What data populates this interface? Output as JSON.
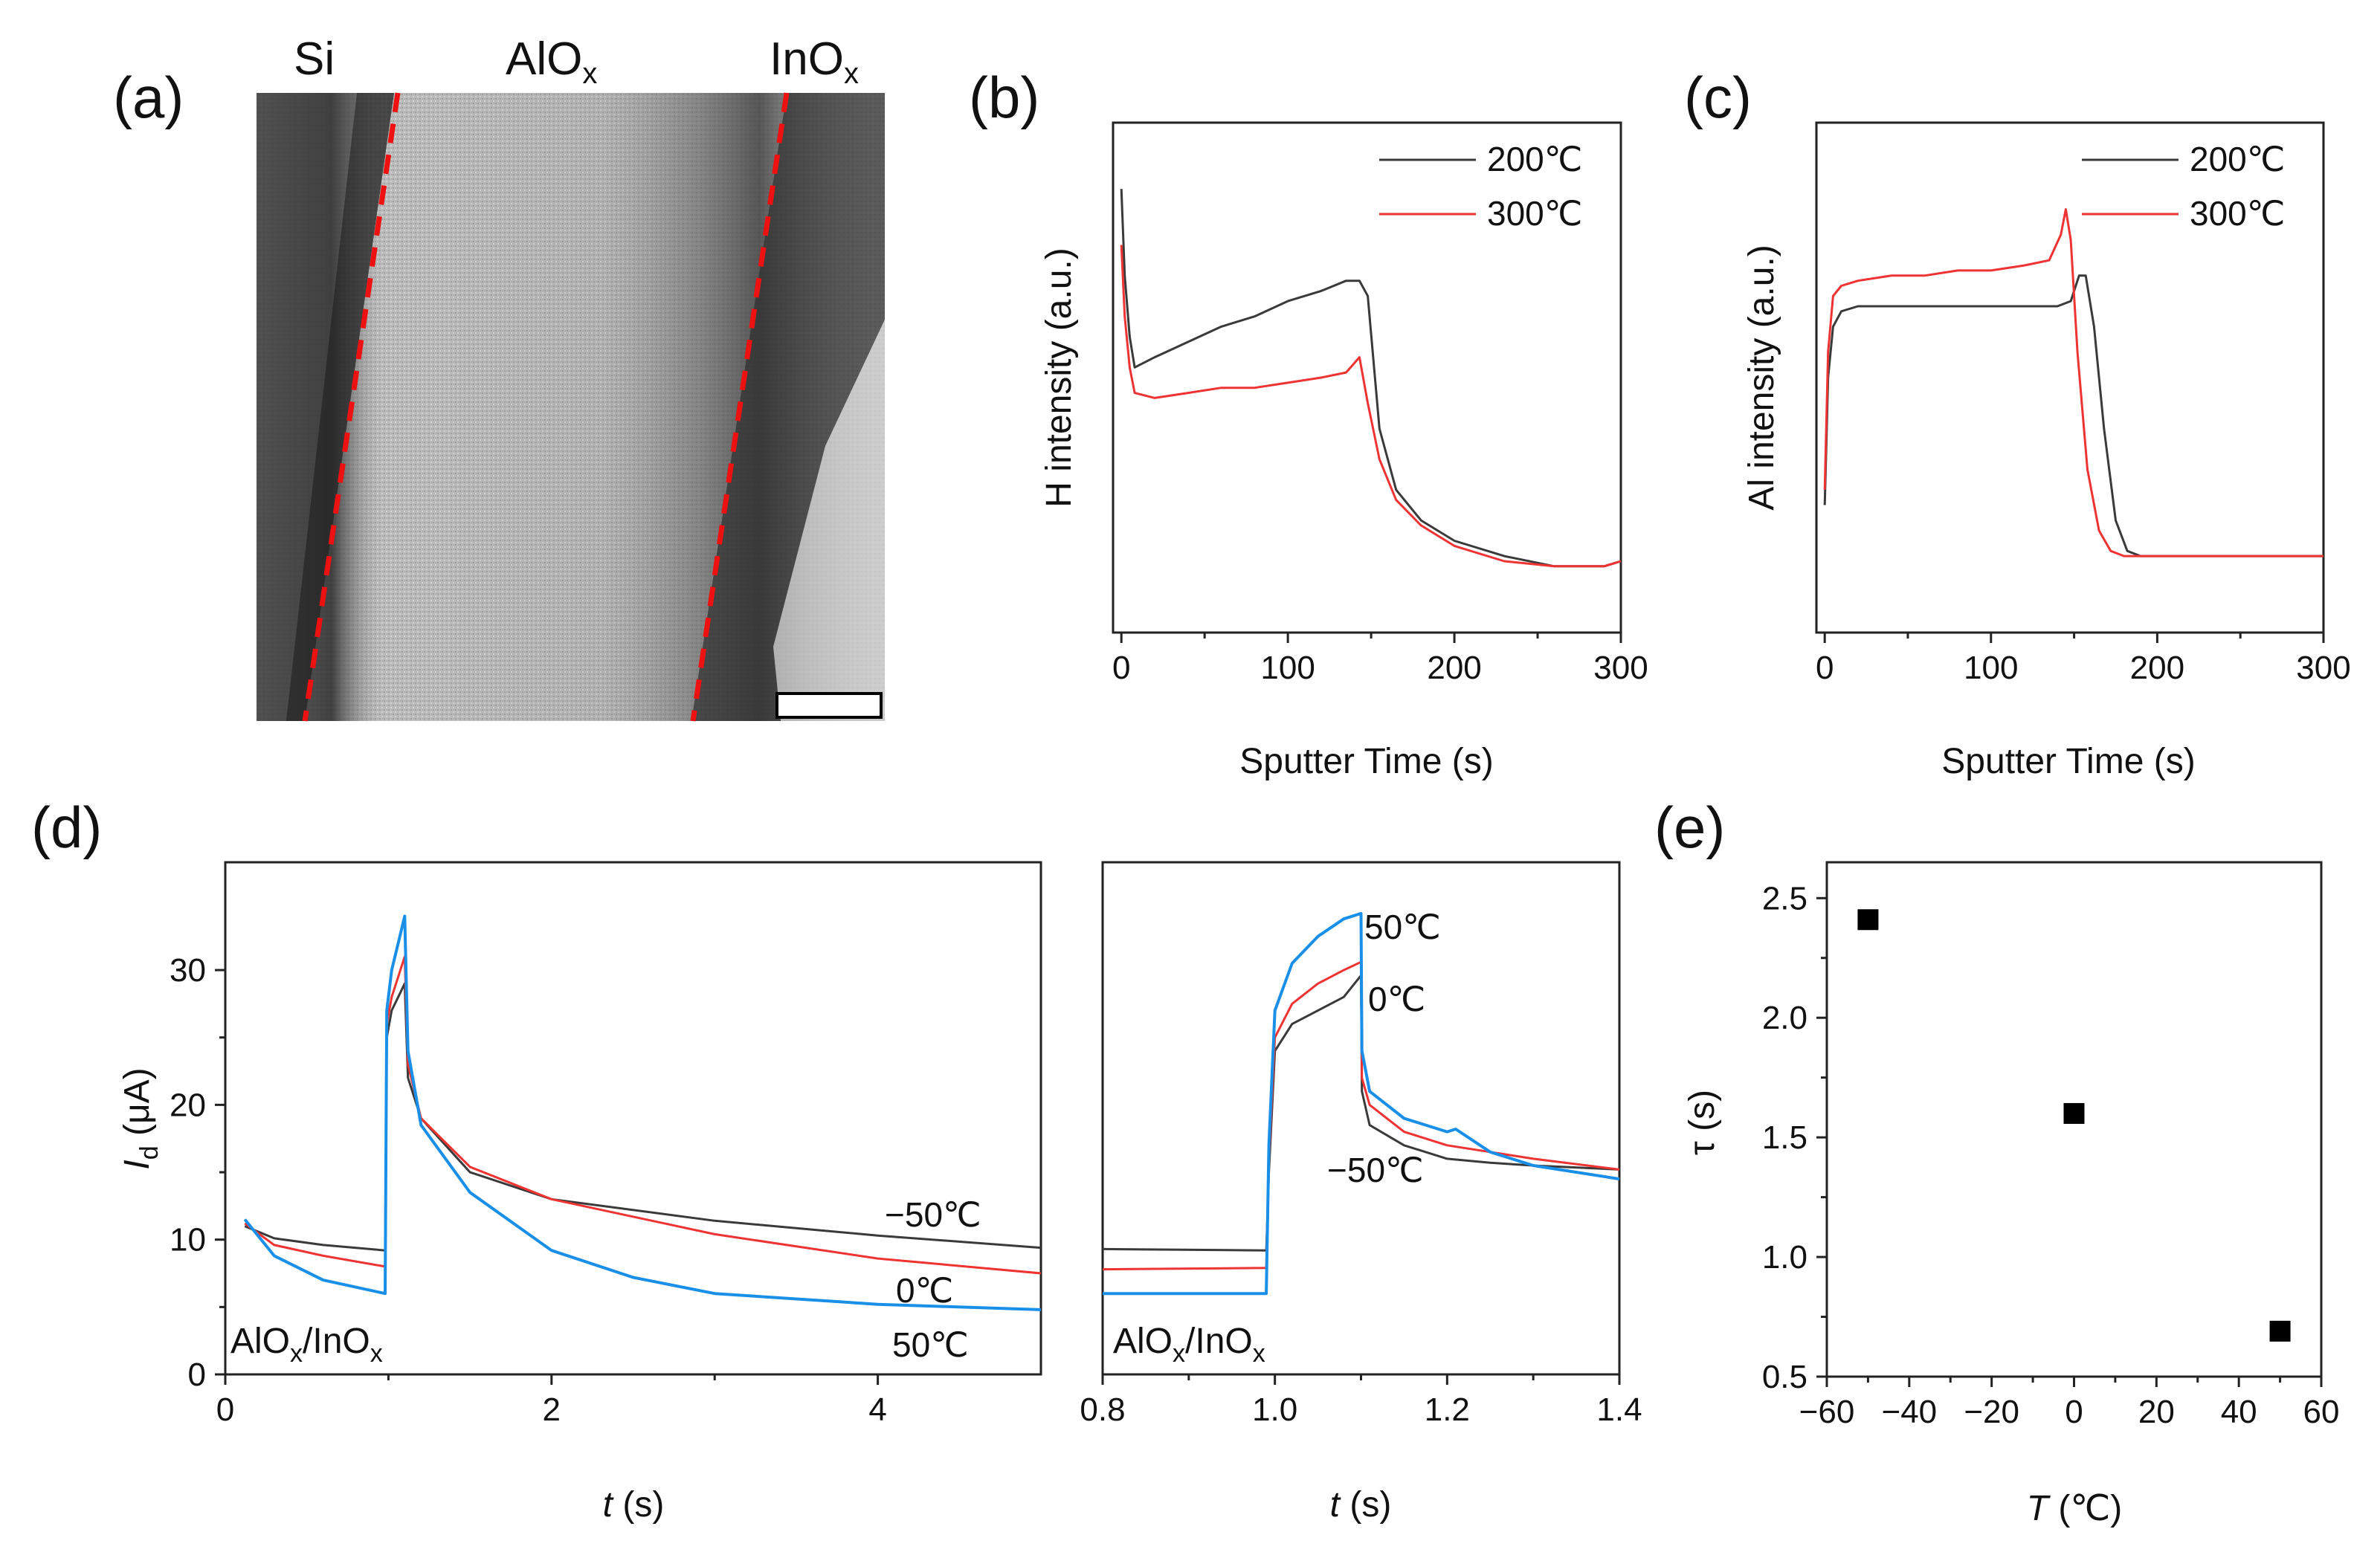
{
  "figure": {
    "panel_labels": [
      "(a)",
      "(b)",
      "(c)",
      "(d)",
      "(e)"
    ],
    "colors": {
      "c200": "#3a3a3a",
      "c300": "#ee3333",
      "cm50": "#3a3a3a",
      "c0": "#ee3333",
      "c50": "#1a8fe8",
      "marker": "#000000",
      "interface": "#ee1111"
    }
  },
  "tem": {
    "labels": [
      "Si",
      "AlO",
      "x",
      "InO",
      "x"
    ],
    "scale_bar_icon": "scale-bar"
  },
  "chart_data": [
    {
      "id": "b",
      "type": "line",
      "xlabel": "Sputter Time (s)",
      "ylabel": "H intensity (a.u.)",
      "xlim": [
        -5,
        300
      ],
      "ylim": [
        0,
        100
      ],
      "xticks": [
        "0",
        "100",
        "200",
        "300"
      ],
      "xtick_values": [
        0,
        100,
        200,
        300
      ],
      "series": [
        {
          "name": "200℃",
          "color": "#3a3a3a",
          "x": [
            0,
            2,
            5,
            8,
            20,
            40,
            60,
            80,
            100,
            120,
            135,
            143,
            148,
            155,
            165,
            180,
            200,
            230,
            260,
            290,
            300
          ],
          "y": [
            87,
            70,
            58,
            52,
            54,
            57,
            60,
            62,
            65,
            67,
            69,
            69,
            66,
            40,
            28,
            22,
            18,
            15,
            13,
            13,
            14
          ]
        },
        {
          "name": "300℃",
          "color": "#ee3333",
          "x": [
            0,
            2,
            5,
            8,
            20,
            40,
            60,
            80,
            100,
            120,
            135,
            143,
            148,
            155,
            165,
            180,
            200,
            230,
            260,
            290,
            300
          ],
          "y": [
            76,
            62,
            52,
            47,
            46,
            47,
            48,
            48,
            49,
            50,
            51,
            54,
            45,
            34,
            26,
            21,
            17,
            14,
            13,
            13,
            14
          ]
        }
      ]
    },
    {
      "id": "c",
      "type": "line",
      "xlabel": "Sputter Time (s)",
      "ylabel": "Al intensity (a.u.)",
      "xlim": [
        -5,
        300
      ],
      "ylim": [
        0,
        100
      ],
      "xticks": [
        "0",
        "100",
        "200",
        "300"
      ],
      "xtick_values": [
        0,
        100,
        200,
        300
      ],
      "series": [
        {
          "name": "200℃",
          "color": "#3a3a3a",
          "x": [
            0,
            2,
            5,
            10,
            20,
            40,
            60,
            80,
            100,
            120,
            140,
            148,
            153,
            157,
            162,
            168,
            175,
            182,
            190,
            220,
            260,
            300
          ],
          "y": [
            25,
            50,
            60,
            63,
            64,
            64,
            64,
            64,
            64,
            64,
            64,
            65,
            70,
            70,
            60,
            40,
            22,
            16,
            15,
            15,
            15,
            15
          ]
        },
        {
          "name": "300℃",
          "color": "#ee3333",
          "x": [
            0,
            2,
            5,
            10,
            20,
            40,
            60,
            80,
            100,
            120,
            135,
            142,
            145,
            148,
            152,
            158,
            165,
            172,
            180,
            220,
            260,
            300
          ],
          "y": [
            28,
            55,
            66,
            68,
            69,
            70,
            70,
            71,
            71,
            72,
            73,
            78,
            83,
            77,
            55,
            32,
            20,
            16,
            15,
            15,
            15,
            15
          ]
        }
      ]
    },
    {
      "id": "d-left",
      "type": "line",
      "xlabel_italic": "t",
      "xlabel_rest": " (s)",
      "ylabel_italic": "I",
      "ylabel_sub": "d",
      "ylabel_rest": " (μA)",
      "xlim": [
        0,
        5
      ],
      "ylim": [
        0,
        38
      ],
      "xticks": [
        "0",
        "2",
        "4"
      ],
      "xtick_values": [
        0,
        2,
        4
      ],
      "yticks": [
        "0",
        "10",
        "20",
        "30"
      ],
      "ytick_values": [
        0,
        10,
        20,
        30
      ],
      "sample": "AlO",
      "sample_sub1": "x",
      "sample_mid": "/InO",
      "sample_sub2": "x",
      "series": [
        {
          "name": "−50℃",
          "color": "#3a3a3a",
          "x": [
            0.12,
            0.3,
            0.6,
            0.98,
            0.99,
            1.02,
            1.06,
            1.1,
            1.12,
            1.2,
            1.5,
            2.0,
            3.0,
            4.0,
            5.0
          ],
          "y": [
            11.0,
            10.1,
            9.6,
            9.2,
            25.0,
            27.0,
            28.0,
            29.0,
            22.0,
            19.0,
            15.0,
            13.0,
            11.4,
            10.3,
            9.4
          ]
        },
        {
          "name": "0℃",
          "color": "#ee3333",
          "x": [
            0.12,
            0.3,
            0.6,
            0.98,
            0.99,
            1.02,
            1.06,
            1.1,
            1.12,
            1.2,
            1.5,
            2.0,
            3.0,
            4.0,
            5.0
          ],
          "y": [
            11.2,
            9.6,
            8.8,
            8.0,
            26.0,
            28.0,
            29.5,
            31.0,
            23.0,
            19.0,
            15.4,
            13.0,
            10.4,
            8.6,
            7.5
          ]
        },
        {
          "name": "50℃",
          "color": "#1a8fe8",
          "x": [
            0.12,
            0.3,
            0.6,
            0.98,
            0.99,
            1.02,
            1.06,
            1.1,
            1.12,
            1.2,
            1.5,
            2.0,
            2.5,
            3.0,
            4.0,
            5.0
          ],
          "y": [
            11.5,
            8.8,
            7.0,
            6.0,
            27.0,
            30.0,
            32.0,
            34.0,
            24.0,
            18.5,
            13.5,
            9.2,
            7.2,
            6.0,
            5.2,
            4.8
          ]
        }
      ],
      "annotations": [
        "−50℃",
        "0℃",
        "50℃"
      ]
    },
    {
      "id": "d-right",
      "type": "line",
      "xlabel_italic": "t",
      "xlabel_rest": " (s)",
      "xlim": [
        0.8,
        1.4
      ],
      "ylim": [
        0,
        38
      ],
      "xticks": [
        "0.8",
        "1.0",
        "1.2",
        "1.4"
      ],
      "xtick_values": [
        0.8,
        1.0,
        1.2,
        1.4
      ],
      "sample": "AlO",
      "sample_sub1": "x",
      "sample_mid": "/InO",
      "sample_sub2": "x",
      "series": [
        {
          "name": "−50℃",
          "color": "#3a3a3a",
          "x": [
            0.8,
            0.99,
            0.993,
            1.0,
            1.02,
            1.05,
            1.08,
            1.1,
            1.101,
            1.11,
            1.15,
            1.2,
            1.25,
            1.3,
            1.4
          ],
          "y": [
            9.3,
            9.2,
            15.0,
            24.0,
            26.0,
            27.0,
            28.0,
            29.6,
            21.0,
            18.5,
            17.0,
            16.0,
            15.7,
            15.5,
            15.2
          ]
        },
        {
          "name": "0℃",
          "color": "#ee3333",
          "x": [
            0.8,
            0.99,
            0.993,
            1.0,
            1.02,
            1.05,
            1.08,
            1.1,
            1.101,
            1.11,
            1.15,
            1.2,
            1.25,
            1.3,
            1.4
          ],
          "y": [
            7.8,
            7.9,
            16.0,
            25.0,
            27.5,
            29.0,
            30.0,
            30.6,
            22.0,
            20.0,
            18.0,
            17.0,
            16.5,
            16.0,
            15.2
          ]
        },
        {
          "name": "50℃",
          "color": "#1a8fe8",
          "x": [
            0.8,
            0.99,
            0.993,
            1.0,
            1.02,
            1.05,
            1.08,
            1.1,
            1.101,
            1.11,
            1.15,
            1.2,
            1.21,
            1.25,
            1.3,
            1.4
          ],
          "y": [
            6.0,
            6.0,
            17.0,
            27.0,
            30.5,
            32.5,
            33.8,
            34.2,
            24.0,
            21.0,
            19.0,
            18.0,
            18.2,
            16.5,
            15.5,
            14.5
          ]
        }
      ],
      "annotations": [
        "50℃",
        "0℃",
        "−50℃"
      ]
    },
    {
      "id": "e",
      "type": "scatter",
      "xlabel_italic": "T",
      "xlabel_rest": " (℃)",
      "ylabel": "τ (s)",
      "xlim": [
        -60,
        60
      ],
      "ylim": [
        0.5,
        2.65
      ],
      "xticks": [
        "−60",
        "−40",
        "−20",
        "0",
        "20",
        "40",
        "60"
      ],
      "xtick_values": [
        -60,
        -40,
        -20,
        0,
        20,
        40,
        60
      ],
      "yticks": [
        "0.5",
        "1.0",
        "1.5",
        "2.0",
        "2.5"
      ],
      "ytick_values": [
        0.5,
        1.0,
        1.5,
        2.0,
        2.5
      ],
      "points": [
        {
          "x": -50,
          "y": 2.41
        },
        {
          "x": 0,
          "y": 1.6
        },
        {
          "x": 50,
          "y": 0.69
        }
      ]
    }
  ]
}
